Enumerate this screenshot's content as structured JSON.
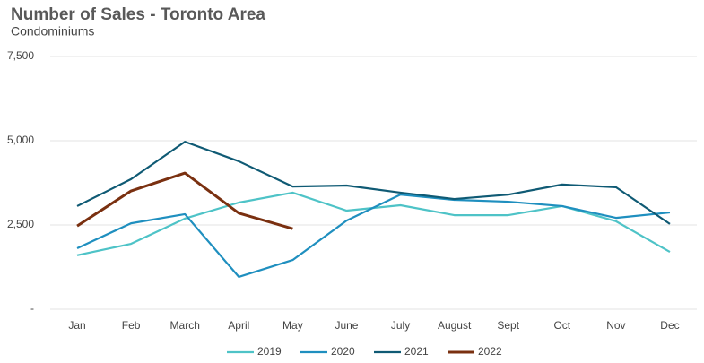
{
  "chart_data": {
    "type": "line",
    "title": "Number of Sales - Toronto Area",
    "subtitle": "Condominiums",
    "categories": [
      "Jan",
      "Feb",
      "March",
      "April",
      "May",
      "June",
      "July",
      "August",
      "Sept",
      "Oct",
      "Nov",
      "Dec"
    ],
    "series": [
      {
        "name": "2019",
        "color": "#4ec3c7",
        "values": [
          1600,
          1940,
          2690,
          3165,
          3460,
          2925,
          3085,
          2790,
          2790,
          3060,
          2610,
          1700
        ]
      },
      {
        "name": "2020",
        "color": "#1f8fbf",
        "values": [
          1810,
          2550,
          2820,
          960,
          1460,
          2630,
          3400,
          3245,
          3190,
          3060,
          2710,
          2870
        ]
      },
      {
        "name": "2021",
        "color": "#0f5a74",
        "values": [
          3060,
          3860,
          4970,
          4390,
          3640,
          3670,
          3460,
          3270,
          3400,
          3700,
          3620,
          2530
        ]
      },
      {
        "name": "2022",
        "color": "#7a3010",
        "values": [
          2470,
          3510,
          4040,
          2850,
          2390,
          null,
          null,
          null,
          null,
          null,
          null,
          null
        ]
      }
    ],
    "ylim": [
      0,
      7500
    ],
    "yticks": [
      {
        "value": 0,
        "label": "-"
      },
      {
        "value": 2500,
        "label": "2,500"
      },
      {
        "value": 5000,
        "label": "5,000"
      },
      {
        "value": 7500,
        "label": "7,500"
      }
    ],
    "grid": true,
    "legend": "bottom"
  }
}
